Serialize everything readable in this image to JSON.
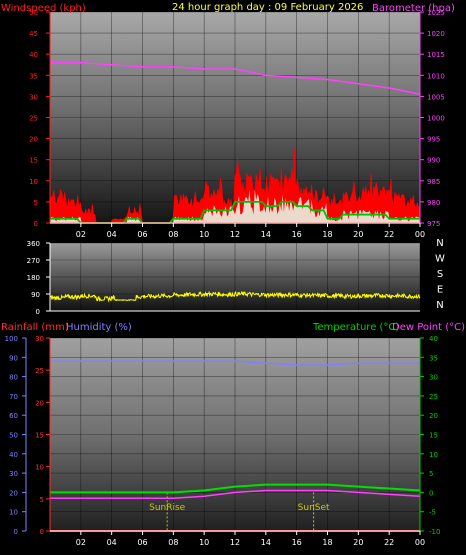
{
  "title": "24 hour graph day : 09 February 2026",
  "colors": {
    "wind": "#ff2020",
    "gust": "#ff0000",
    "baro": "#ff40ff",
    "windavg": "#00c000",
    "windlow": "#e8fff0",
    "dir": "#ffff00",
    "rain": "#ff3030",
    "humidity": "#8080ff",
    "temp": "#00e000",
    "dew": "#ff40ff",
    "sun": "#c8c800"
  },
  "chart_data": [
    {
      "type": "line",
      "name": "wind-baro",
      "title": "24 hour graph day : 09 February 2026",
      "ylabel_left": "Windspeed (kph)",
      "ylabel_right": "Barometer (hpa)",
      "x_ticks": [
        "02",
        "04",
        "06",
        "08",
        "10",
        "12",
        "14",
        "16",
        "18",
        "20",
        "22",
        "00"
      ],
      "y_left_ticks": [
        0,
        5,
        10,
        15,
        20,
        25,
        30,
        35,
        40,
        45,
        50
      ],
      "y_right_ticks": [
        975,
        980,
        985,
        990,
        995,
        1000,
        1005,
        1010,
        1015,
        1020,
        1025
      ],
      "ylim_left": [
        0,
        50
      ],
      "ylim_right": [
        975,
        1025
      ],
      "grid": true,
      "barometer": {
        "x": [
          0,
          2,
          4,
          6,
          8,
          10,
          12,
          14,
          16,
          18,
          20,
          22,
          24
        ],
        "y": [
          1013,
          1013,
          1012.5,
          1012,
          1012,
          1011.5,
          1011.5,
          1010,
          1009.5,
          1009,
          1008,
          1007,
          1005.5
        ]
      },
      "wind_max_by_hour": [
        8,
        6,
        3,
        0,
        1,
        3,
        0,
        0,
        7,
        6,
        9,
        6,
        12,
        11,
        12,
        12,
        10,
        8,
        6,
        8,
        9,
        9,
        7,
        6
      ],
      "gust_peak_by_hour": [
        10,
        8,
        6,
        0,
        2,
        7,
        0,
        0,
        11,
        12,
        13,
        14,
        17,
        16,
        18,
        19,
        15,
        12,
        10,
        12,
        13,
        12,
        11,
        9
      ],
      "wind_avg_by_hour": [
        1,
        1,
        0,
        0,
        0,
        1,
        0,
        0,
        1,
        1,
        3,
        3,
        5,
        5,
        4,
        5,
        4,
        3,
        1,
        2,
        2,
        2,
        1,
        1
      ]
    },
    {
      "type": "scatter",
      "name": "wind-direction",
      "ylabel_right_ticks": [
        "N",
        "W",
        "S",
        "E",
        "N"
      ],
      "x_ticks": [
        "02",
        "04",
        "06",
        "08",
        "10",
        "12",
        "14",
        "16",
        "18",
        "20",
        "22",
        "00"
      ],
      "y_ticks": [
        0,
        90,
        180,
        270,
        360
      ],
      "ylim": [
        0,
        360
      ],
      "direction_by_hour": [
        70,
        75,
        80,
        65,
        70,
        75,
        78,
        80,
        85,
        88,
        90,
        88,
        90,
        87,
        85,
        86,
        84,
        82,
        80,
        78,
        80,
        82,
        80,
        78
      ]
    },
    {
      "type": "line",
      "name": "temp-humidity-rain",
      "ylabel_left": "Rainfall (mm)",
      "ylabel_left2": "Humidity (%)",
      "ylabel_right": "Temperature (°C)",
      "ylabel_right2": "Dew Point (°C)",
      "x_ticks": [
        "02",
        "04",
        "06",
        "08",
        "10",
        "12",
        "14",
        "16",
        "18",
        "20",
        "22",
        "00"
      ],
      "humidity_ticks": [
        0,
        10,
        20,
        30,
        40,
        50,
        60,
        70,
        80,
        90,
        100
      ],
      "rain_ticks": [
        0,
        5,
        10,
        15,
        20,
        25,
        30
      ],
      "temp_ticks": [
        -10,
        -5,
        0,
        5,
        10,
        15,
        20,
        25,
        30,
        35,
        40
      ],
      "ylim_humidity": [
        0,
        100
      ],
      "ylim_rain": [
        0,
        30
      ],
      "ylim_temp": [
        -10,
        40
      ],
      "humidity": {
        "x": [
          0,
          2,
          4,
          6,
          8,
          10,
          12,
          14,
          16,
          18,
          20,
          22,
          24
        ],
        "y": [
          88,
          88,
          88,
          88,
          88,
          88,
          88,
          87,
          86,
          86,
          87,
          87,
          87
        ]
      },
      "temperature": {
        "x": [
          0,
          2,
          4,
          6,
          8,
          10,
          12,
          14,
          16,
          18,
          20,
          22,
          24
        ],
        "y": [
          0,
          0,
          0,
          0,
          0,
          0.5,
          1.5,
          2,
          2,
          2,
          1.5,
          1,
          0.5
        ]
      },
      "dew_point": {
        "x": [
          0,
          2,
          4,
          6,
          8,
          10,
          12,
          14,
          16,
          18,
          20,
          22,
          24
        ],
        "y": [
          -1.5,
          -1.5,
          -1.5,
          -1.5,
          -1.5,
          -1,
          0,
          0.5,
          0.5,
          0.5,
          0,
          -0.5,
          -1
        ]
      },
      "rainfall": {
        "x": [
          0,
          24
        ],
        "y": [
          0,
          0
        ]
      },
      "annotations": [
        {
          "label": "SunRise",
          "x": 7.6
        },
        {
          "label": "SunSet",
          "x": 17.1
        }
      ]
    }
  ]
}
